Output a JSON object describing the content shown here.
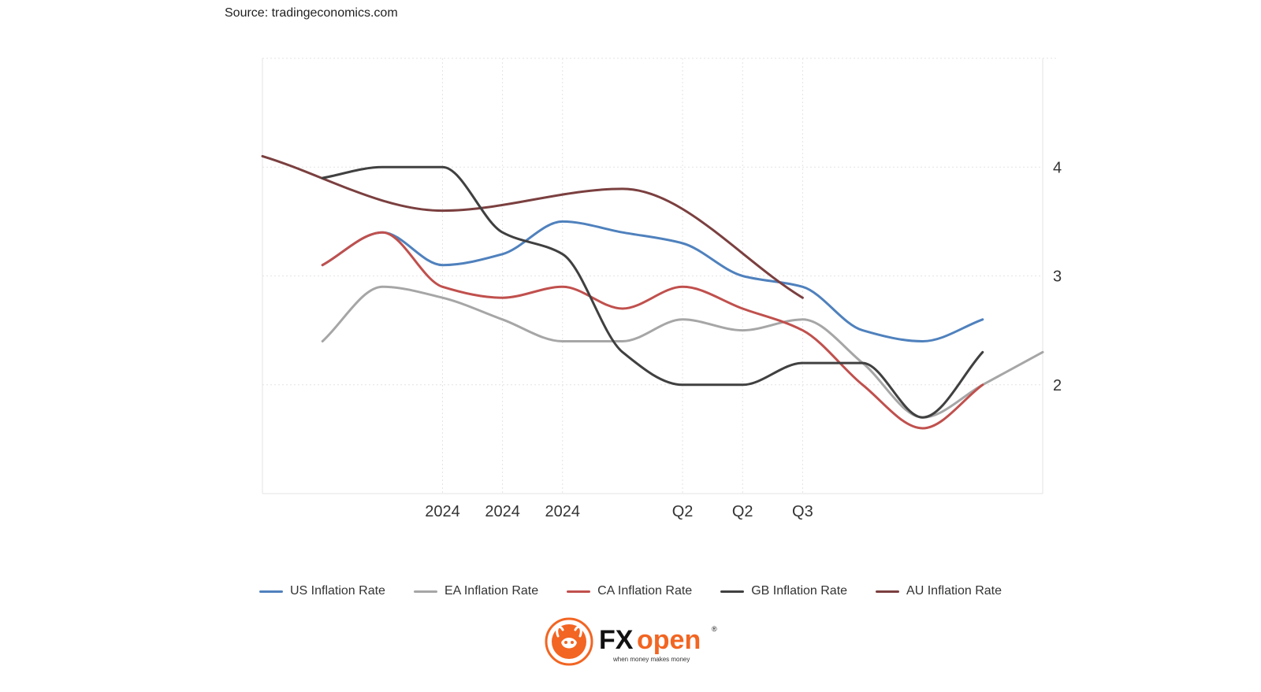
{
  "source": "Source: tradingeconomics.com",
  "colors": {
    "us": "#4f81bd",
    "ea": "#a6a6a6",
    "ca": "#c0504d",
    "gb": "#404040",
    "au": "#7b3f3f",
    "grid": "#e3e3e3",
    "logo_orange": "#f26522"
  },
  "chart_data": {
    "type": "line",
    "x_tick_labels": [
      {
        "x": 3,
        "label": "2024"
      },
      {
        "x": 4,
        "label": "2024"
      },
      {
        "x": 5,
        "label": "2024"
      },
      {
        "x": 7,
        "label": "Q2"
      },
      {
        "x": 8,
        "label": "Q2"
      },
      {
        "x": 9,
        "label": "Q3"
      }
    ],
    "y_ticks": [
      4,
      3,
      2
    ],
    "ylim": [
      1,
      5
    ],
    "xlim": [
      0,
      13
    ],
    "y_axis_position": "right",
    "grid": true,
    "legend_position": "bottom-center",
    "series": [
      {
        "key": "us",
        "name": "US Inflation Rate",
        "x": [
          1,
          2,
          3,
          4,
          5,
          6,
          7,
          8,
          9,
          10,
          11,
          12
        ],
        "values": [
          3.1,
          3.4,
          3.1,
          3.2,
          3.5,
          3.4,
          3.3,
          3.0,
          2.9,
          2.5,
          2.4,
          2.6
        ]
      },
      {
        "key": "ea",
        "name": "EA Inflation Rate",
        "x": [
          1,
          2,
          3,
          4,
          5,
          6,
          7,
          8,
          9,
          10,
          11,
          12,
          13
        ],
        "values": [
          2.4,
          2.9,
          2.8,
          2.6,
          2.4,
          2.4,
          2.6,
          2.5,
          2.6,
          2.2,
          1.7,
          2.0,
          2.3
        ]
      },
      {
        "key": "ca",
        "name": "CA Inflation Rate",
        "x": [
          1,
          2,
          3,
          4,
          5,
          6,
          7,
          8,
          9,
          10,
          11,
          12
        ],
        "values": [
          3.1,
          3.4,
          2.9,
          2.8,
          2.9,
          2.7,
          2.9,
          2.7,
          2.5,
          2.0,
          1.6,
          2.0
        ]
      },
      {
        "key": "gb",
        "name": "GB Inflation Rate",
        "x": [
          1,
          2,
          3,
          4,
          5,
          6,
          7,
          8,
          9,
          10,
          11,
          12
        ],
        "values": [
          3.9,
          4.0,
          4.0,
          3.4,
          3.2,
          2.3,
          2.0,
          2.0,
          2.2,
          2.2,
          1.7,
          2.3
        ]
      },
      {
        "key": "au",
        "name": "AU Inflation Rate",
        "x": [
          0,
          3,
          6,
          9
        ],
        "values": [
          4.1,
          3.6,
          3.8,
          2.8
        ]
      }
    ]
  },
  "logo": {
    "brand_fx": "FX",
    "brand_open": "open",
    "registered": "®",
    "tagline": "when money makes money"
  }
}
